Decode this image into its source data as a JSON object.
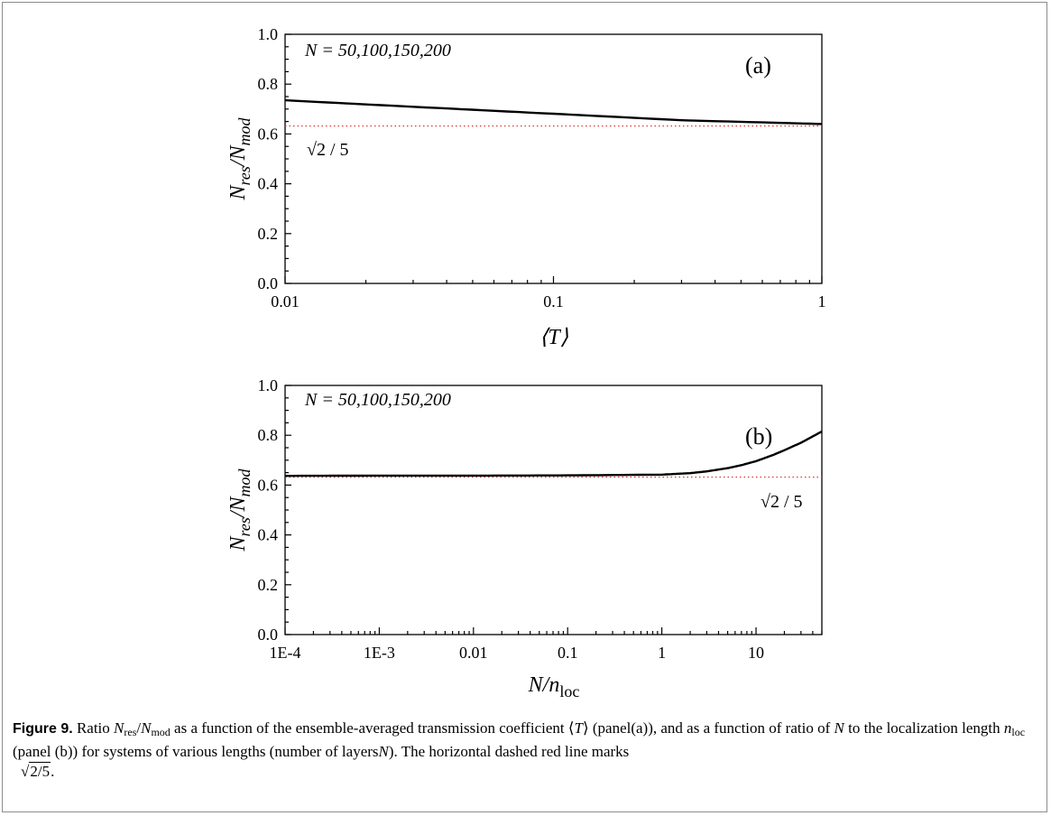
{
  "chart_data": [
    {
      "type": "line",
      "panel_label": "(a)",
      "annotation": "N = 50,100,150,200",
      "reference_line_label": "√2 / 5",
      "reference_line": {
        "value": 0.632,
        "color": "#e0403a",
        "style": "dotted"
      },
      "xlabel": "⟨T⟩",
      "ylabel": "N_res/N_mod",
      "xscale": "log",
      "xlim": [
        0.01,
        1
      ],
      "ylim": [
        0.0,
        1.0
      ],
      "xticks": [
        "0.01",
        "0.1",
        "1"
      ],
      "yticks": [
        "0.0",
        "0.2",
        "0.4",
        "0.6",
        "0.8",
        "1.0"
      ],
      "series": [
        {
          "x": [
            0.01,
            0.03,
            0.1,
            0.3,
            1.0
          ],
          "y": [
            0.735,
            0.709,
            0.681,
            0.655,
            0.64
          ],
          "color": "#000000"
        }
      ]
    },
    {
      "type": "line",
      "panel_label": "(b)",
      "annotation": "N = 50,100,150,200",
      "reference_line_label": "√2 / 5",
      "reference_line": {
        "value": 0.632,
        "color": "#e0403a",
        "style": "dotted"
      },
      "xlabel": "N/n_loc",
      "ylabel": "N_res/N_mod",
      "xscale": "log",
      "xlim": [
        0.0001,
        50
      ],
      "ylim": [
        0.0,
        1.0
      ],
      "xticks": [
        "1E-4",
        "1E-3",
        "0.01",
        "0.1",
        "1",
        "10"
      ],
      "yticks": [
        "0.0",
        "0.2",
        "0.4",
        "0.6",
        "0.8",
        "1.0"
      ],
      "series": [
        {
          "x": [
            0.0001,
            0.001,
            0.01,
            0.1,
            1,
            2,
            3,
            5,
            7,
            10,
            15,
            20,
            30,
            50
          ],
          "y": [
            0.637,
            0.638,
            0.638,
            0.639,
            0.642,
            0.648,
            0.655,
            0.668,
            0.68,
            0.696,
            0.72,
            0.74,
            0.77,
            0.815
          ],
          "color": "#000000"
        }
      ]
    }
  ],
  "caption": {
    "label": "Figure 9.",
    "ratio_lead": "Ratio",
    "text_1": "as a function of the ensemble-averaged transmission coefficient",
    "text_2": "(panel(a)), and as a function of ratio of",
    "text_3": "to the localization length",
    "text_4": "(panel (b)) for systems of various lengths (number of layers",
    "text_5": "). The horizontal dashed red line marks"
  }
}
